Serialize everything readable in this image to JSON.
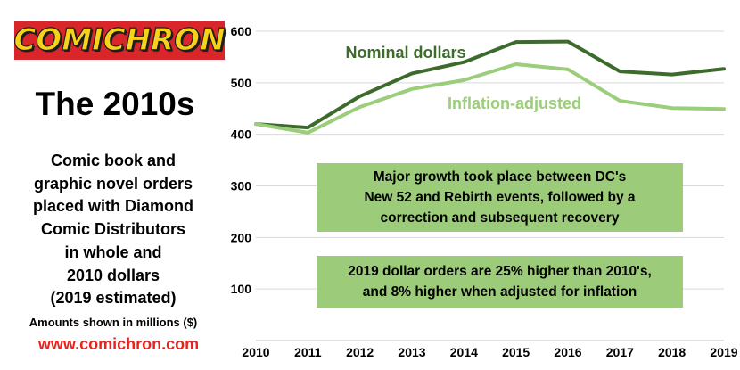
{
  "logo": {
    "text": "COMICHRON"
  },
  "panel": {
    "title": "The 2010s",
    "description_lines": [
      "Comic book and",
      "graphic novel orders",
      "placed with Diamond",
      "Comic Distributors",
      "in whole and",
      "2010 dollars",
      "(2019 estimated)"
    ],
    "amounts_note": "Amounts shown in millions ($)",
    "website": "www.comichron.com"
  },
  "colors": {
    "nominal": "#3d6b2c",
    "inflation": "#9bcd7a",
    "callout_bg": "#9ccb79",
    "grid": "#d9d9d9",
    "website": "#e8231f"
  },
  "chart_data": {
    "type": "line",
    "x": [
      "2010",
      "2011",
      "2012",
      "2013",
      "2014",
      "2015",
      "2016",
      "2017",
      "2018",
      "2019"
    ],
    "ylim": [
      0,
      600
    ],
    "yticks": [
      100,
      200,
      300,
      400,
      500,
      600
    ],
    "grid": true,
    "series": [
      {
        "name": "Nominal dollars",
        "values": [
          420,
          413,
          474,
          518,
          540,
          579,
          580,
          522,
          516,
          527
        ]
      },
      {
        "name": "Inflation-adjusted",
        "values": [
          420,
          403,
          453,
          488,
          505,
          536,
          526,
          465,
          451,
          449
        ]
      }
    ],
    "annotations": [
      {
        "lines": [
          "Major growth took place between DC's",
          "New 52 and Rebirth events, followed by a",
          "correction and subsequent recovery"
        ]
      },
      {
        "lines": [
          "2019 dollar orders are 25% higher than 2010's,",
          "and 8% higher when adjusted for inflation"
        ]
      }
    ]
  }
}
